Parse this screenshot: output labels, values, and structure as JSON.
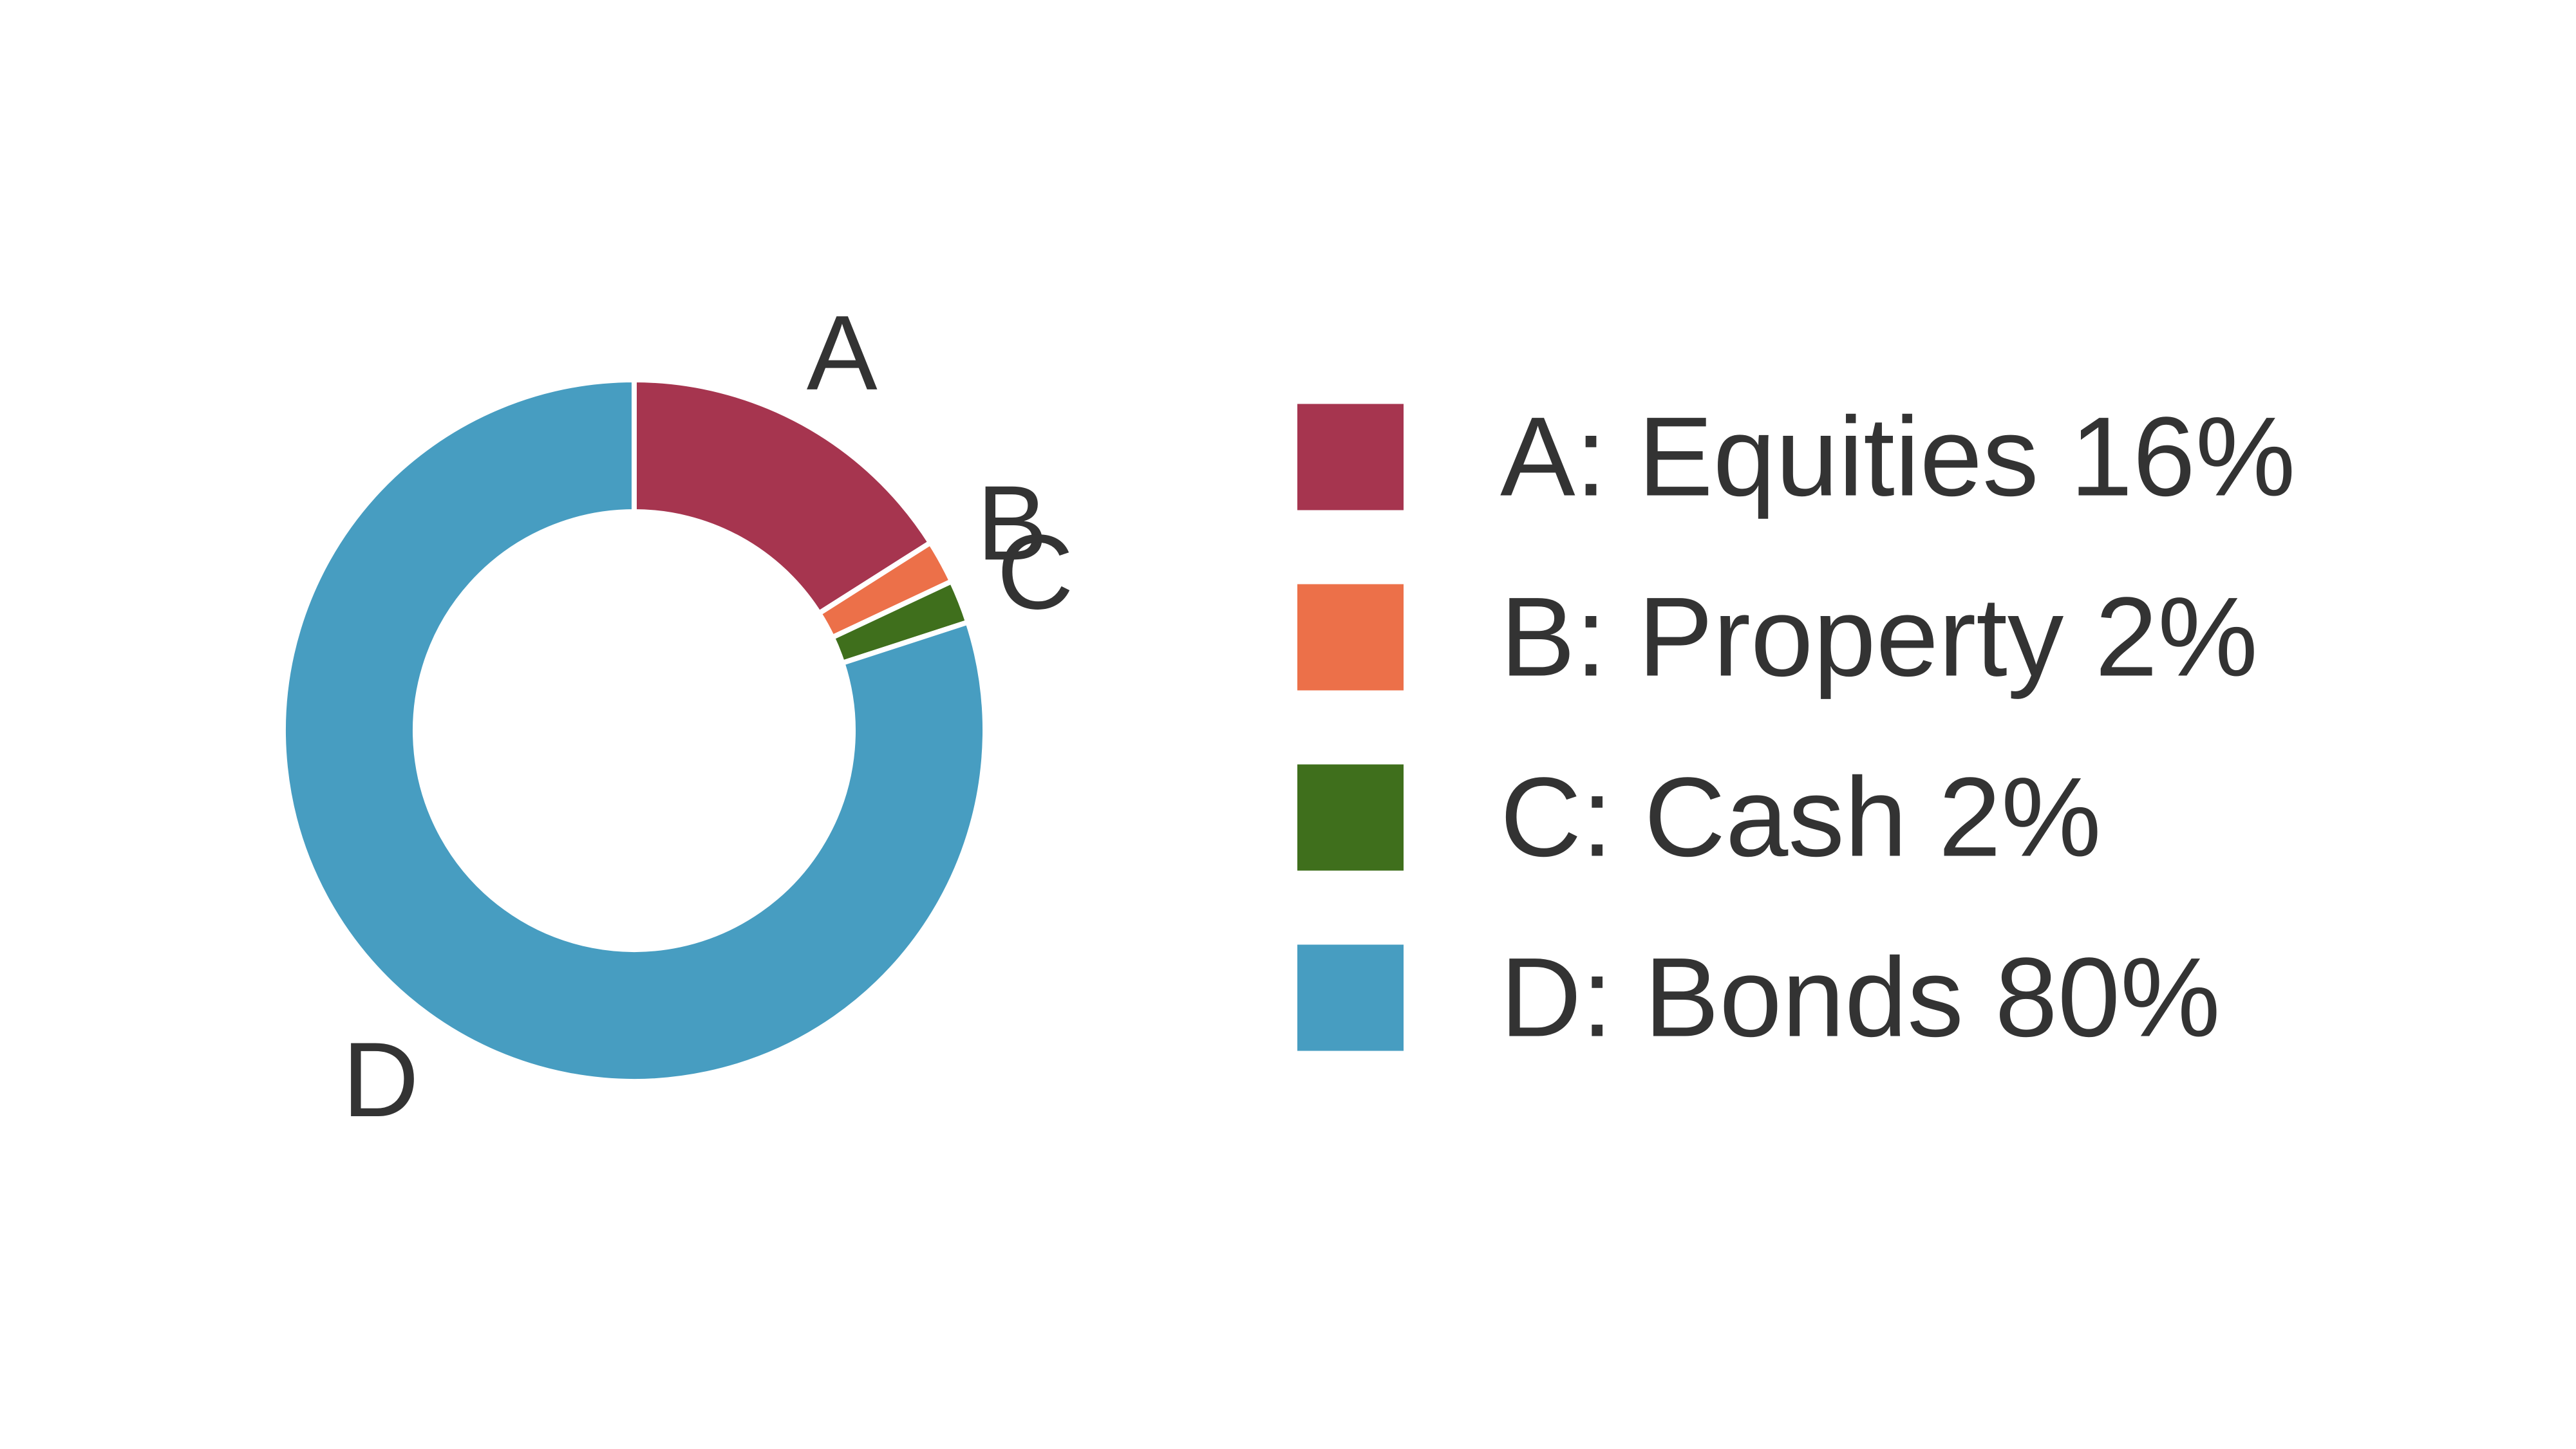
{
  "chart_data": {
    "type": "pie",
    "style": "donut",
    "slices": [
      {
        "id": "A",
        "label": "Equities",
        "value": 16,
        "legend": "A: Equities 16%",
        "color": "#a6354f"
      },
      {
        "id": "B",
        "label": "Property",
        "value": 2,
        "legend": "B: Property 2%",
        "color": "#ec7049"
      },
      {
        "id": "C",
        "label": "Cash",
        "value": 2,
        "legend": "C: Cash 2%",
        "color": "#3f6f1c"
      },
      {
        "id": "D",
        "label": "Bonds",
        "value": 80,
        "legend": "D: Bonds 80%",
        "color": "#479dc1"
      }
    ],
    "title": "",
    "legend_position": "right",
    "start_angle": "12 o'clock",
    "direction": "clockwise"
  }
}
